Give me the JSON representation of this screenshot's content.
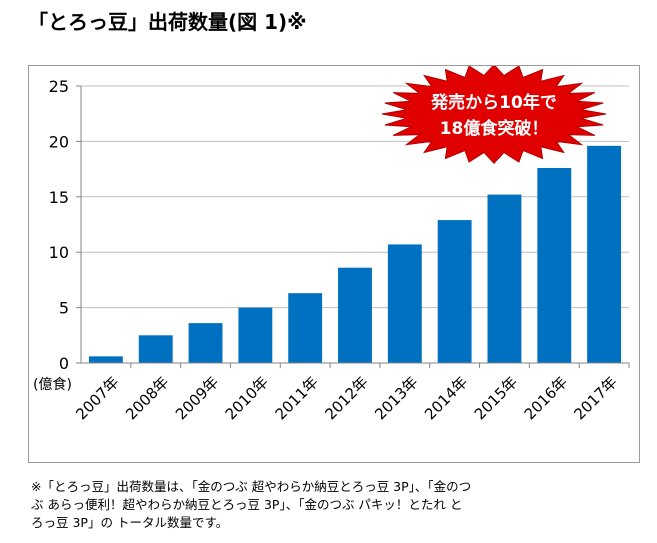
{
  "title": "「とろっ豆」出荷数量(図 1)※",
  "footnote": "※「とろっ豆」出荷数量は、「金のつぶ  超やわらか納豆とろっ豆  3P」、「金のつ\nぶ  あらっ便利！超やわらか納豆とろっ豆  3P」、「金のつぶ  パキッ！とたれ  と\nろっ豆  3P」の  トータル数量です。",
  "colors": {
    "bar": "#0070c0",
    "starburst": "#e00000",
    "grid": "#bfbfbf",
    "axis": "#868686"
  },
  "chart_data": {
    "type": "bar",
    "categories": [
      "2007年",
      "2008年",
      "2009年",
      "2010年",
      "2011年",
      "2012年",
      "2013年",
      "2014年",
      "2015年",
      "2016年",
      "2017年"
    ],
    "values": [
      0.6,
      2.5,
      3.6,
      5.0,
      6.3,
      8.6,
      10.7,
      12.9,
      15.2,
      17.6,
      19.6
    ],
    "ylim": [
      0,
      25
    ],
    "yticks": [
      0,
      5,
      10,
      15,
      20,
      25
    ],
    "ylabel": "(億食)",
    "grid": true,
    "annotation": {
      "line1": "発売から10年で",
      "line2": "18億食突破！"
    }
  }
}
